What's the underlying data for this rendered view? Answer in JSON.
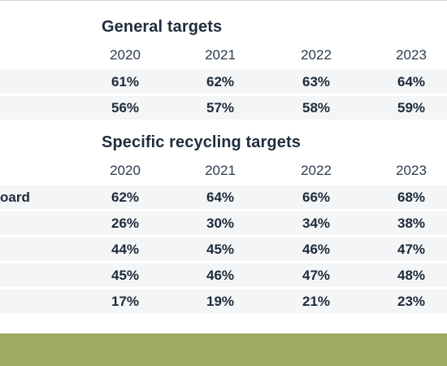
{
  "general": {
    "title": "General targets",
    "years": [
      "2020",
      "2021",
      "2022",
      "2023"
    ],
    "rows": [
      {
        "label": "",
        "values": [
          "61%",
          "62%",
          "63%",
          "64%"
        ]
      },
      {
        "label": "",
        "values": [
          "56%",
          "57%",
          "58%",
          "59%"
        ]
      }
    ]
  },
  "specific": {
    "title": "Specific recycling targets",
    "years": [
      "2020",
      "2021",
      "2022",
      "2023"
    ],
    "rows": [
      {
        "label": "oard",
        "values": [
          "62%",
          "64%",
          "66%",
          "68%"
        ]
      },
      {
        "label": "",
        "values": [
          "26%",
          "30%",
          "34%",
          "38%"
        ]
      },
      {
        "label": "",
        "values": [
          "44%",
          "45%",
          "46%",
          "47%"
        ]
      },
      {
        "label": "",
        "values": [
          "45%",
          "46%",
          "47%",
          "48%"
        ]
      },
      {
        "label": "",
        "values": [
          "17%",
          "19%",
          "21%",
          "23%"
        ]
      }
    ]
  },
  "colors": {
    "row_background": "#f4f5f6",
    "footer_band": "#9caa63",
    "text": "#1c2a3a"
  }
}
